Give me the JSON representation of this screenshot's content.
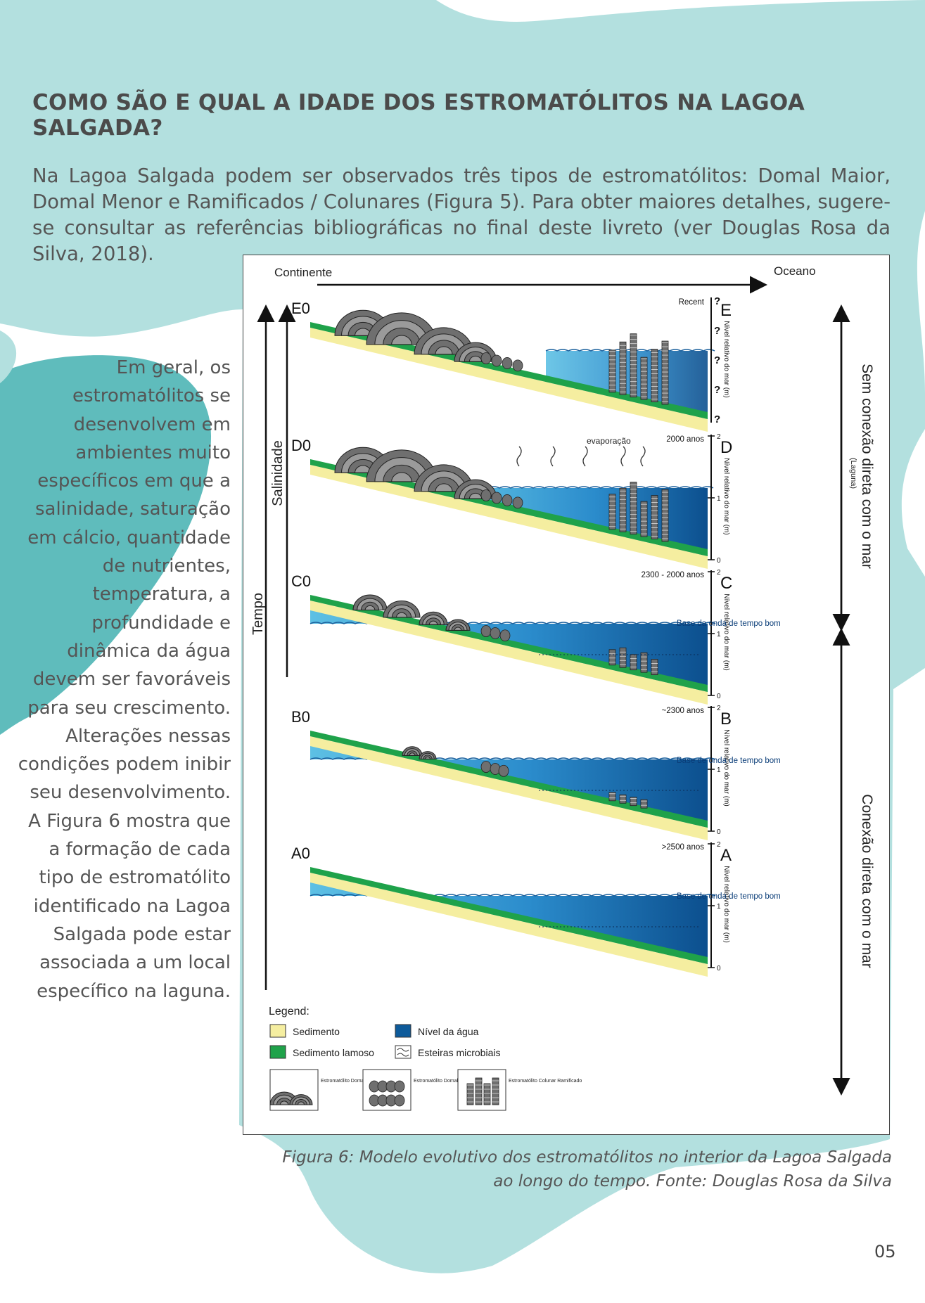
{
  "page": {
    "title": "COMO SÃO E QUAL A IDADE DOS ESTROMATÓLITOS NA LAGOA SALGADA?",
    "intro": "Na Lagoa Salgada podem ser observados três tipos de estromatólitos: Domal Maior, Domal Menor e Ramificados / Colunares (Figura 5). Para obter maiores detalhes, sugere-se consultar as referências bibliográficas no final deste livreto (ver Douglas Rosa da Silva, 2018).",
    "side_text": "Em geral, os estromatólitos se desenvolvem em ambientes muito específicos em que a salinidade, saturação em cálcio, quantidade de nutrientes, temperatura, a profundidade e dinâmica da água devem ser favoráveis para seu crescimento. Alterações nessas condições podem inibir seu desenvolvimento. A Figura 6 mostra que a formação de cada tipo de estromatólito identificado na Lagoa Salgada pode estar associada a um local específico na laguna.",
    "caption": "Figura 6: Modelo evolutivo dos estromatólitos no interior da Lagoa Salgada ao longo do tempo. Fonte: Douglas Rosa da Silva",
    "page_number": "05",
    "brand_color": "#b3e0df"
  },
  "figure": {
    "continent_label": "Continente",
    "ocean_label": "Oceano",
    "time_label": "Tempo",
    "salinity_label": "Salinidade",
    "evaporation_label": "evaporação",
    "no_connection_label": "Sem conexão direta com o mar",
    "laguna_label": "(Laguna)",
    "connection_label": "Conexão direta com o mar",
    "sea_level_axis_label": "Nível relativo do mar (m)",
    "wave_base_label": "Base da onda de tempo bom",
    "wave_base_label_alt": "Base de onda de tempo bom",
    "question_mark": "?",
    "stages": [
      {
        "code": "E",
        "left_code": "E0",
        "age": "Recent"
      },
      {
        "code": "D",
        "left_code": "D0",
        "age": "2000 anos"
      },
      {
        "code": "C",
        "left_code": "C0",
        "age": "2300 - 2000 anos"
      },
      {
        "code": "B",
        "left_code": "B0",
        "age": "~2300 anos"
      },
      {
        "code": "A",
        "left_code": "A0",
        "age": ">2500 anos"
      }
    ],
    "ticks": [
      "2",
      "1",
      "0"
    ],
    "legend": {
      "title": "Legend:",
      "sediment": "Sedimento",
      "muddy_sediment": "Sedimento lamoso",
      "water_level": "Nível da água",
      "microbial_mats": "Esteiras microbiais",
      "domal_major": "Estromatólito Domal Maior",
      "domal_minor": "Estromatólito Domal Menor",
      "columnar": "Estromatólito Colunar Ramificado"
    },
    "colors": {
      "sediment": "#f5eea0",
      "muddy_sediment": "#1fa24a",
      "water_dark": "#0d5a9a",
      "water_light": "#4fb6de",
      "stromatolite": "#6f6f6f"
    }
  }
}
